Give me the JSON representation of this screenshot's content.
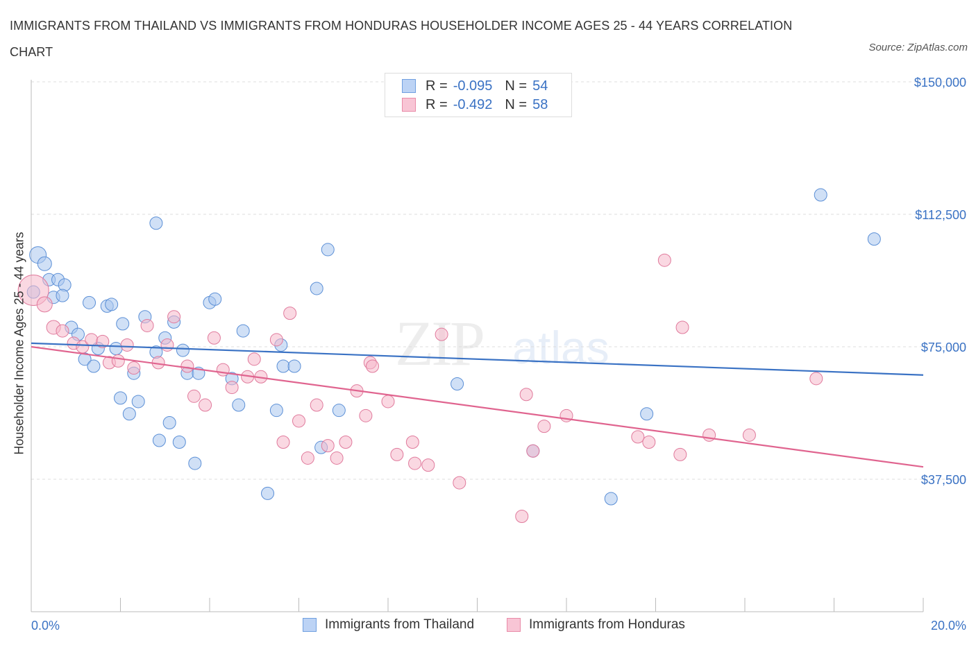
{
  "title": "IMMIGRANTS FROM THAILAND VS IMMIGRANTS FROM HONDURAS HOUSEHOLDER INCOME AGES 25 - 44 YEARS CORRELATION CHART",
  "source": "Source: ZipAtlas.com",
  "watermark": {
    "zip": "ZIP",
    "atlas": "atlas"
  },
  "legend": {
    "r_label": "R =",
    "n_label": "N =",
    "series": [
      {
        "r": "-0.095",
        "n": "54",
        "fill": "#bcd3f5",
        "stroke": "#6f9fe0"
      },
      {
        "r": "-0.492",
        "n": "58",
        "fill": "#f8c5d5",
        "stroke": "#e98aa8"
      }
    ]
  },
  "colors": {
    "blue_point_fill": "#a9c6ef",
    "blue_point_stroke": "#5b8fd6",
    "blue_line": "#3a72c4",
    "pink_point_fill": "#f5b8cb",
    "pink_point_stroke": "#e07a9c",
    "pink_line": "#e0648f",
    "tick_label": "#3a72c4",
    "grid": "#dcdcdc"
  },
  "chart_data": {
    "type": "scatter",
    "title": "IMMIGRANTS FROM THAILAND VS IMMIGRANTS FROM HONDURAS HOUSEHOLDER INCOME AGES 25 - 44 YEARS CORRELATION CHART",
    "xlabel": "",
    "ylabel": "Householder Income Ages 25 - 44 years",
    "xlim": [
      0,
      20
    ],
    "ylim": [
      0,
      150000
    ],
    "x_tick_labels": [
      "0.0%",
      "20.0%"
    ],
    "y_ticks": [
      37500,
      75000,
      112500,
      150000
    ],
    "y_tick_labels": [
      "$37,500",
      "$75,000",
      "$112,500",
      "$150,000"
    ],
    "grid": "horizontal dashed",
    "legend_position": "top-center and bottom",
    "series": [
      {
        "name": "Immigrants from Thailand",
        "trend": {
          "x": [
            0,
            20
          ],
          "y": [
            76000,
            67000
          ]
        },
        "points": [
          [
            0.15,
            101000,
            12
          ],
          [
            0.3,
            98500,
            10
          ],
          [
            0.4,
            94000,
            9
          ],
          [
            0.6,
            94000,
            9
          ],
          [
            0.75,
            92500,
            9
          ],
          [
            0.5,
            89000,
            9
          ],
          [
            0.7,
            89500,
            9
          ],
          [
            1.3,
            87500,
            9
          ],
          [
            1.7,
            86500,
            9
          ],
          [
            1.8,
            87000,
            9
          ],
          [
            0.9,
            80500,
            9
          ],
          [
            1.05,
            78500,
            9
          ],
          [
            1.5,
            74500,
            9
          ],
          [
            1.9,
            74500,
            9
          ],
          [
            2.05,
            81500,
            9
          ],
          [
            2.55,
            83500,
            9
          ],
          [
            2.8,
            73500,
            9
          ],
          [
            3.0,
            77500,
            9
          ],
          [
            3.2,
            82000,
            9
          ],
          [
            3.4,
            74000,
            9
          ],
          [
            1.2,
            71500,
            9
          ],
          [
            1.4,
            69500,
            9
          ],
          [
            2.3,
            67500,
            9
          ],
          [
            3.5,
            67500,
            9
          ],
          [
            3.75,
            67500,
            9
          ],
          [
            2.0,
            60500,
            9
          ],
          [
            2.4,
            59500,
            9
          ],
          [
            2.2,
            56000,
            9
          ],
          [
            3.1,
            53500,
            9
          ],
          [
            2.87,
            48500,
            9
          ],
          [
            3.32,
            48000,
            9
          ],
          [
            3.67,
            42000,
            9
          ],
          [
            4.0,
            87500,
            9
          ],
          [
            4.12,
            88500,
            9
          ],
          [
            4.5,
            66000,
            9
          ],
          [
            4.65,
            58500,
            9
          ],
          [
            4.75,
            79500,
            9
          ],
          [
            5.6,
            75500,
            9
          ],
          [
            5.65,
            69500,
            9
          ],
          [
            5.9,
            69500,
            9
          ],
          [
            5.5,
            57000,
            9
          ],
          [
            5.3,
            33500,
            9
          ],
          [
            6.4,
            91500,
            9
          ],
          [
            6.65,
            102500,
            9
          ],
          [
            6.5,
            46500,
            9
          ],
          [
            6.9,
            57000,
            9
          ],
          [
            2.8,
            110000,
            9
          ],
          [
            9.55,
            64500,
            9
          ],
          [
            11.25,
            45500,
            9
          ],
          [
            13.0,
            32000,
            9
          ],
          [
            13.8,
            56000,
            9
          ],
          [
            17.7,
            118000,
            9
          ],
          [
            18.9,
            105500,
            9
          ],
          [
            0.05,
            90500,
            9
          ]
        ]
      },
      {
        "name": "Immigrants from Honduras",
        "trend": {
          "x": [
            0,
            20
          ],
          "y": [
            75000,
            41000
          ]
        },
        "points": [
          [
            0.05,
            91000,
            22
          ],
          [
            0.3,
            87000,
            11
          ],
          [
            0.5,
            80500,
            10
          ],
          [
            0.7,
            79500,
            9
          ],
          [
            0.95,
            76000,
            9
          ],
          [
            1.15,
            75000,
            9
          ],
          [
            1.35,
            77000,
            9
          ],
          [
            1.6,
            76500,
            9
          ],
          [
            1.75,
            70500,
            9
          ],
          [
            1.95,
            71000,
            9
          ],
          [
            2.15,
            75500,
            9
          ],
          [
            2.3,
            69000,
            9
          ],
          [
            2.6,
            81000,
            9
          ],
          [
            2.85,
            70500,
            9
          ],
          [
            3.05,
            75500,
            9
          ],
          [
            3.2,
            83500,
            9
          ],
          [
            3.5,
            69500,
            9
          ],
          [
            3.65,
            61000,
            9
          ],
          [
            3.9,
            58500,
            9
          ],
          [
            4.1,
            77500,
            9
          ],
          [
            4.3,
            68500,
            9
          ],
          [
            4.5,
            63500,
            9
          ],
          [
            4.85,
            66500,
            9
          ],
          [
            5.0,
            71500,
            9
          ],
          [
            5.15,
            66500,
            9
          ],
          [
            5.5,
            77000,
            9
          ],
          [
            5.65,
            48000,
            9
          ],
          [
            6.0,
            54000,
            9
          ],
          [
            6.2,
            43500,
            9
          ],
          [
            6.4,
            58500,
            9
          ],
          [
            6.65,
            47000,
            9
          ],
          [
            6.85,
            43500,
            9
          ],
          [
            7.05,
            48000,
            9
          ],
          [
            7.3,
            62500,
            9
          ],
          [
            7.5,
            55500,
            9
          ],
          [
            5.8,
            84500,
            9
          ],
          [
            7.6,
            70500,
            9
          ],
          [
            7.65,
            69500,
            9
          ],
          [
            8.0,
            59500,
            9
          ],
          [
            8.2,
            44500,
            9
          ],
          [
            8.55,
            48000,
            9
          ],
          [
            8.6,
            42000,
            9
          ],
          [
            8.9,
            41500,
            9
          ],
          [
            9.2,
            78500,
            9
          ],
          [
            9.6,
            36500,
            9
          ],
          [
            11.0,
            27000,
            9
          ],
          [
            11.1,
            61500,
            9
          ],
          [
            11.5,
            52500,
            9
          ],
          [
            12.0,
            55500,
            9
          ],
          [
            11.25,
            45500,
            9
          ],
          [
            13.6,
            49500,
            9
          ],
          [
            13.85,
            48000,
            9
          ],
          [
            14.2,
            99500,
            9
          ],
          [
            14.55,
            44500,
            9
          ],
          [
            14.6,
            80500,
            9
          ],
          [
            15.2,
            50000,
            9
          ],
          [
            16.1,
            50000,
            9
          ],
          [
            17.6,
            66000,
            9
          ]
        ]
      }
    ]
  }
}
